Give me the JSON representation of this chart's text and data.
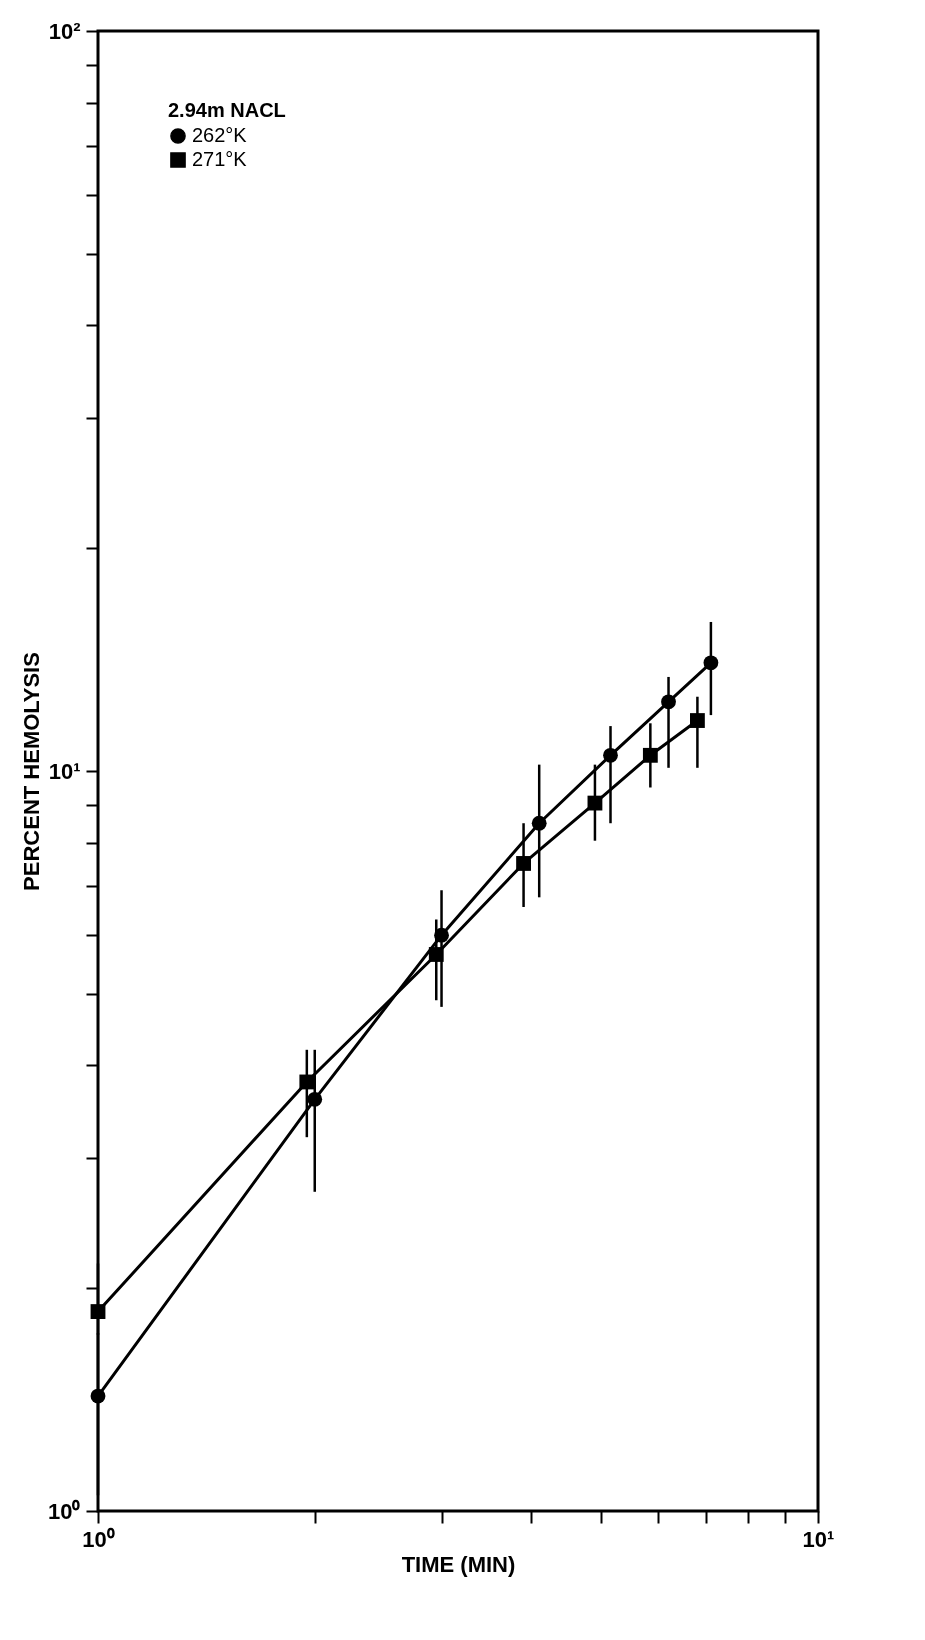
{
  "chart_data": {
    "type": "line",
    "xlabel": "TIME (MIN)",
    "ylabel": "PERCENT HEMOLYSIS",
    "legend_title": "2.94m NACL",
    "legend": "top left",
    "log": "xy",
    "xlim": [
      1,
      10
    ],
    "ylim": [
      1,
      100
    ],
    "xticks": [
      {
        "value": 1,
        "label": "10⁰"
      },
      {
        "value": 2,
        "label": null
      },
      {
        "value": 3,
        "label": null
      },
      {
        "value": 4,
        "label": null
      },
      {
        "value": 5,
        "label": null
      },
      {
        "value": 6,
        "label": null
      },
      {
        "value": 7,
        "label": null
      },
      {
        "value": 8,
        "label": null
      },
      {
        "value": 9,
        "label": null
      },
      {
        "value": 10,
        "label": "10¹"
      }
    ],
    "yticks": [
      {
        "value": 1,
        "label": "10⁰"
      },
      {
        "value": 2,
        "label": null
      },
      {
        "value": 3,
        "label": null
      },
      {
        "value": 4,
        "label": null
      },
      {
        "value": 5,
        "label": null
      },
      {
        "value": 6,
        "label": null
      },
      {
        "value": 7,
        "label": null
      },
      {
        "value": 8,
        "label": null
      },
      {
        "value": 9,
        "label": null
      },
      {
        "value": 10,
        "label": "10¹"
      },
      {
        "value": 20,
        "label": null
      },
      {
        "value": 30,
        "label": null
      },
      {
        "value": 40,
        "label": null
      },
      {
        "value": 50,
        "label": null
      },
      {
        "value": 60,
        "label": null
      },
      {
        "value": 70,
        "label": null
      },
      {
        "value": 80,
        "label": null
      },
      {
        "value": 90,
        "label": null
      },
      {
        "value": 100,
        "label": "10²"
      }
    ],
    "series": [
      {
        "name": "262°K",
        "color": "#000000",
        "marker": "circle",
        "x": [
          1.0,
          2.0,
          3.0,
          4.1,
          5.15,
          6.2,
          7.1
        ],
        "values": [
          1.43,
          3.6,
          6.0,
          8.5,
          10.5,
          12.4,
          14.0
        ],
        "errors": [
          [
            1.05,
            1.74
          ],
          [
            2.7,
            4.2
          ],
          [
            4.8,
            6.9
          ],
          [
            6.75,
            10.2
          ],
          [
            8.5,
            11.5
          ],
          [
            10.1,
            13.4
          ],
          [
            11.9,
            15.9
          ]
        ]
      },
      {
        "name": "271°K",
        "color": "#000000",
        "marker": "square",
        "x": [
          1.0,
          1.95,
          2.95,
          3.9,
          4.9,
          5.85,
          6.8
        ],
        "values": [
          1.86,
          3.8,
          5.65,
          7.5,
          9.05,
          10.5,
          11.7
        ],
        "errors": [
          [
            1.73,
            2.16
          ],
          [
            3.2,
            4.2
          ],
          [
            4.9,
            6.3
          ],
          [
            6.55,
            8.5
          ],
          [
            8.05,
            10.2
          ],
          [
            9.5,
            11.6
          ],
          [
            10.1,
            12.6
          ]
        ]
      }
    ]
  }
}
